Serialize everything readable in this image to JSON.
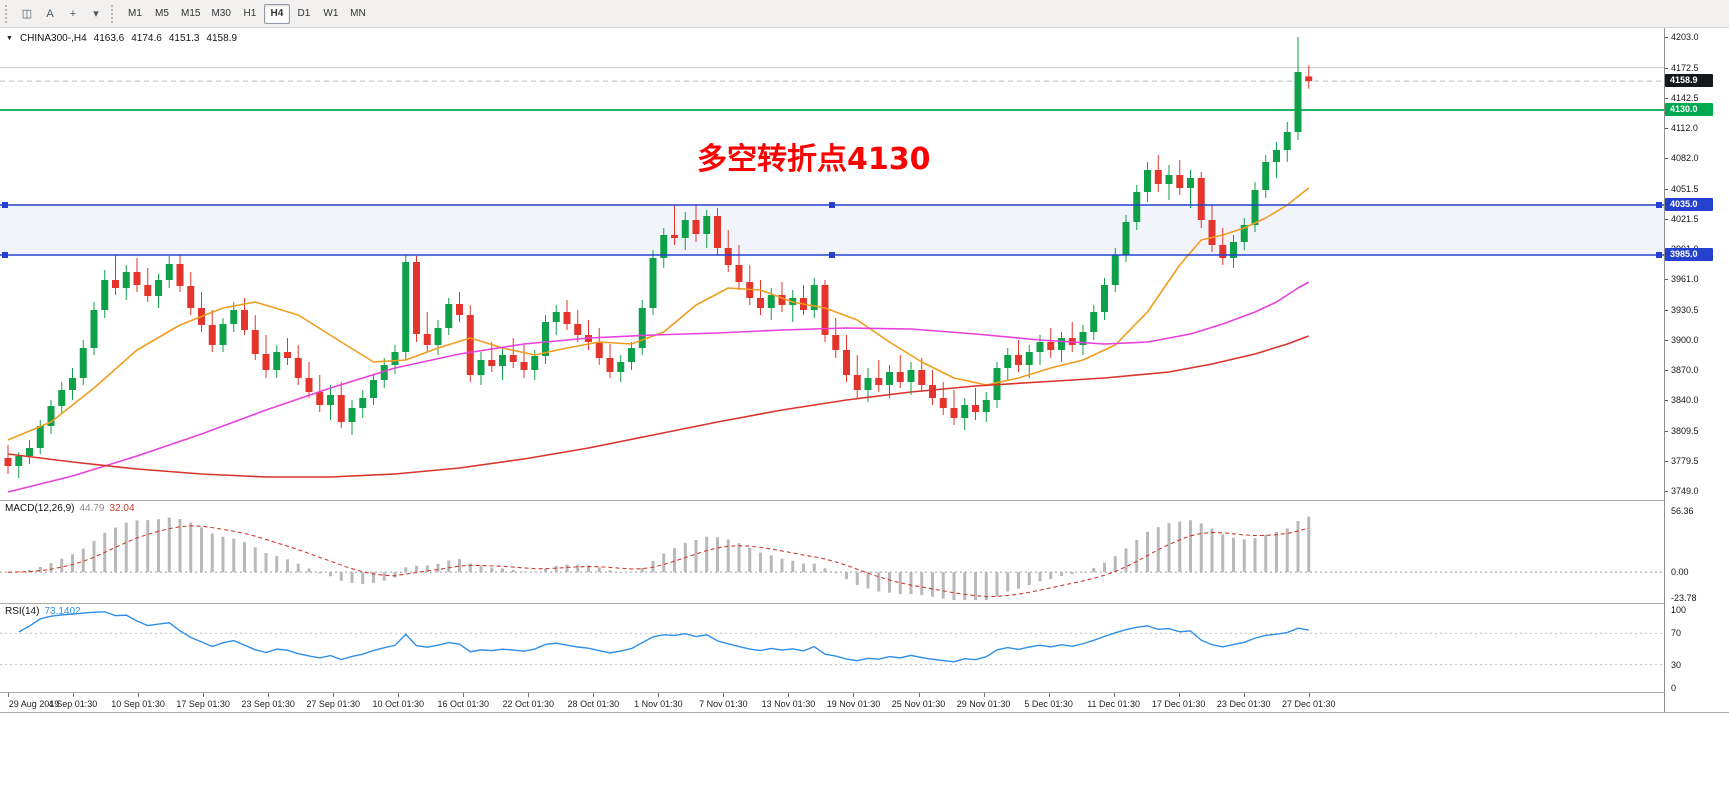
{
  "toolbar": {
    "tools": [
      {
        "id": "chart-window",
        "glyph": "◫"
      },
      {
        "id": "text-label-tool",
        "glyph": "A"
      },
      {
        "id": "crosshair-tool",
        "glyph": "+"
      },
      {
        "id": "objects-dropdown",
        "glyph": "▾"
      }
    ],
    "timeframes": [
      "M1",
      "M5",
      "M15",
      "M30",
      "H1",
      "H4",
      "D1",
      "W1",
      "MN"
    ],
    "active_timeframe": "H4"
  },
  "chart": {
    "symbol": "CHINA300-,H4",
    "open": "4163.6",
    "high": "4174.6",
    "low": "4151.3",
    "close": "4158.9",
    "annotation": {
      "text": "多空转折点4130",
      "color": "#fd0002"
    },
    "price_ticks": [
      "4203.0",
      "4172.5",
      "4142.5",
      "4112.0",
      "4082.0",
      "4051.5",
      "4021.5",
      "3991.0",
      "3961.0",
      "3930.5",
      "3900.0",
      "3870.0",
      "3840.0",
      "3809.5",
      "3779.5",
      "3749.0"
    ],
    "price_markers": [
      {
        "name": "last-price-badge",
        "label": "4158.9",
        "value": 4158.9,
        "bg": "#15191c"
      },
      {
        "name": "level-badge-4130",
        "label": "4130.0",
        "value": 4130.0,
        "bg": "#00a94f"
      },
      {
        "name": "level-badge-4035",
        "label": "4035.0",
        "value": 4035.0,
        "bg": "#2440cf"
      },
      {
        "name": "level-badge-3985",
        "label": "3985.0",
        "value": 3985.0,
        "bg": "#2440cf"
      }
    ],
    "lines": [
      {
        "name": "gray-level-line",
        "value": 4172.5,
        "color": "#cccccc",
        "width": 1,
        "style": "solid",
        "layer": "bg",
        "handles": false
      },
      {
        "name": "bid-price-line",
        "value": 4158.9,
        "color": "#bcbcbc",
        "width": 1,
        "style": "dashed",
        "layer": "bg",
        "handles": false
      },
      {
        "name": "green-hline-4130",
        "value": 4130.0,
        "color": "#00a94f",
        "width": 1.8,
        "style": "solid",
        "layer": "fg",
        "handles": false
      },
      {
        "name": "blue-hline-4035",
        "value": 4035.0,
        "color": "#2440cf",
        "width": 1.6,
        "style": "solid",
        "layer": "fg",
        "handles": true
      },
      {
        "name": "blue-hline-3985",
        "value": 3985.0,
        "color": "#2440cf",
        "width": 1.6,
        "style": "solid",
        "layer": "fg",
        "handles": true
      }
    ],
    "band": {
      "from": 4035.0,
      "to": 3985.0,
      "color": "rgba(68,100,210,0.07)"
    }
  },
  "chart_data": {
    "type": "candlestick",
    "title": "CHINA300- H4",
    "price_range": {
      "min": 3740,
      "max": 4212
    },
    "colors": {
      "up": "#0fa04a",
      "down": "#e3352b"
    },
    "x_labels": [
      "29 Aug 2019",
      "4 Sep 01:30",
      "10 Sep 01:30",
      "17 Sep 01:30",
      "23 Sep 01:30",
      "27 Sep 01:30",
      "10 Oct 01:30",
      "16 Oct 01:30",
      "22 Oct 01:30",
      "28 Oct 01:30",
      "1 Nov 01:30",
      "7 Nov 01:30",
      "13 Nov 01:30",
      "19 Nov 01:30",
      "25 Nov 01:30",
      "29 Nov 01:30",
      "5 Dec 01:30",
      "11 Dec 01:30",
      "17 Dec 01:30",
      "23 Dec 01:30",
      "27 Dec 01:30"
    ],
    "candles": [
      [
        3782,
        3795,
        3766,
        3774
      ],
      [
        3774,
        3788,
        3762,
        3784
      ],
      [
        3784,
        3800,
        3776,
        3792
      ],
      [
        3792,
        3820,
        3786,
        3814
      ],
      [
        3814,
        3840,
        3806,
        3834
      ],
      [
        3834,
        3858,
        3826,
        3850
      ],
      [
        3850,
        3872,
        3840,
        3862
      ],
      [
        3862,
        3900,
        3855,
        3892
      ],
      [
        3892,
        3938,
        3885,
        3930
      ],
      [
        3930,
        3970,
        3922,
        3960
      ],
      [
        3960,
        3985,
        3945,
        3952
      ],
      [
        3952,
        3975,
        3940,
        3968
      ],
      [
        3968,
        3982,
        3948,
        3955
      ],
      [
        3955,
        3972,
        3938,
        3944
      ],
      [
        3944,
        3966,
        3932,
        3960
      ],
      [
        3960,
        3984,
        3952,
        3976
      ],
      [
        3976,
        3985,
        3948,
        3954
      ],
      [
        3954,
        3968,
        3925,
        3932
      ],
      [
        3932,
        3948,
        3908,
        3915
      ],
      [
        3915,
        3930,
        3888,
        3895
      ],
      [
        3895,
        3922,
        3888,
        3916
      ],
      [
        3916,
        3938,
        3908,
        3930
      ],
      [
        3930,
        3942,
        3905,
        3910
      ],
      [
        3910,
        3925,
        3880,
        3886
      ],
      [
        3886,
        3905,
        3862,
        3870
      ],
      [
        3870,
        3895,
        3862,
        3888
      ],
      [
        3888,
        3902,
        3875,
        3882
      ],
      [
        3882,
        3895,
        3855,
        3862
      ],
      [
        3862,
        3878,
        3842,
        3848
      ],
      [
        3848,
        3865,
        3828,
        3835
      ],
      [
        3835,
        3855,
        3820,
        3845
      ],
      [
        3845,
        3858,
        3812,
        3818
      ],
      [
        3818,
        3840,
        3805,
        3832
      ],
      [
        3832,
        3850,
        3822,
        3842
      ],
      [
        3842,
        3866,
        3835,
        3860
      ],
      [
        3860,
        3882,
        3852,
        3875
      ],
      [
        3875,
        3895,
        3866,
        3888
      ],
      [
        3888,
        3985,
        3880,
        3978
      ],
      [
        3978,
        3984,
        3898,
        3906
      ],
      [
        3906,
        3928,
        3888,
        3895
      ],
      [
        3895,
        3920,
        3885,
        3912
      ],
      [
        3912,
        3942,
        3905,
        3936
      ],
      [
        3936,
        3948,
        3918,
        3925
      ],
      [
        3925,
        3935,
        3858,
        3865
      ],
      [
        3865,
        3888,
        3855,
        3880
      ],
      [
        3880,
        3898,
        3868,
        3874
      ],
      [
        3874,
        3892,
        3860,
        3885
      ],
      [
        3885,
        3902,
        3872,
        3878
      ],
      [
        3878,
        3895,
        3862,
        3870
      ],
      [
        3870,
        3890,
        3860,
        3884
      ],
      [
        3884,
        3925,
        3876,
        3918
      ],
      [
        3918,
        3935,
        3905,
        3928
      ],
      [
        3928,
        3940,
        3910,
        3916
      ],
      [
        3916,
        3930,
        3898,
        3905
      ],
      [
        3905,
        3920,
        3890,
        3898
      ],
      [
        3898,
        3912,
        3875,
        3882
      ],
      [
        3882,
        3896,
        3862,
        3868
      ],
      [
        3868,
        3885,
        3858,
        3878
      ],
      [
        3878,
        3898,
        3870,
        3892
      ],
      [
        3892,
        3940,
        3885,
        3932
      ],
      [
        3932,
        3990,
        3925,
        3982
      ],
      [
        3982,
        4012,
        3972,
        4005
      ],
      [
        4005,
        4035,
        3995,
        4002
      ],
      [
        4002,
        4028,
        3990,
        4020
      ],
      [
        4020,
        4036,
        3998,
        4006
      ],
      [
        4006,
        4030,
        3992,
        4024
      ],
      [
        4024,
        4032,
        3985,
        3992
      ],
      [
        3992,
        4010,
        3968,
        3975
      ],
      [
        3975,
        3995,
        3950,
        3958
      ],
      [
        3958,
        3975,
        3935,
        3942
      ],
      [
        3942,
        3960,
        3925,
        3932
      ],
      [
        3932,
        3952,
        3920,
        3945
      ],
      [
        3945,
        3958,
        3928,
        3935
      ],
      [
        3935,
        3950,
        3918,
        3942
      ],
      [
        3942,
        3955,
        3925,
        3930
      ],
      [
        3930,
        3962,
        3922,
        3955
      ],
      [
        3955,
        3960,
        3898,
        3905
      ],
      [
        3905,
        3922,
        3882,
        3890
      ],
      [
        3890,
        3905,
        3858,
        3865
      ],
      [
        3865,
        3885,
        3842,
        3850
      ],
      [
        3850,
        3872,
        3838,
        3862
      ],
      [
        3862,
        3880,
        3848,
        3855
      ],
      [
        3855,
        3875,
        3842,
        3868
      ],
      [
        3868,
        3885,
        3852,
        3858
      ],
      [
        3858,
        3878,
        3845,
        3870
      ],
      [
        3870,
        3882,
        3848,
        3855
      ],
      [
        3855,
        3870,
        3835,
        3842
      ],
      [
        3842,
        3858,
        3825,
        3832
      ],
      [
        3832,
        3850,
        3815,
        3822
      ],
      [
        3822,
        3842,
        3810,
        3835
      ],
      [
        3835,
        3852,
        3820,
        3828
      ],
      [
        3828,
        3848,
        3818,
        3840
      ],
      [
        3840,
        3878,
        3832,
        3872
      ],
      [
        3872,
        3892,
        3860,
        3885
      ],
      [
        3885,
        3900,
        3868,
        3875
      ],
      [
        3875,
        3895,
        3862,
        3888
      ],
      [
        3888,
        3905,
        3875,
        3898
      ],
      [
        3898,
        3912,
        3882,
        3890
      ],
      [
        3890,
        3908,
        3878,
        3902
      ],
      [
        3902,
        3918,
        3888,
        3895
      ],
      [
        3895,
        3915,
        3885,
        3908
      ],
      [
        3908,
        3935,
        3900,
        3928
      ],
      [
        3928,
        3962,
        3920,
        3955
      ],
      [
        3955,
        3992,
        3948,
        3985
      ],
      [
        3985,
        4025,
        3978,
        4018
      ],
      [
        4018,
        4055,
        4010,
        4048
      ],
      [
        4048,
        4078,
        4038,
        4070
      ],
      [
        4070,
        4085,
        4048,
        4056
      ],
      [
        4056,
        4075,
        4040,
        4065
      ],
      [
        4065,
        4080,
        4045,
        4052
      ],
      [
        4052,
        4070,
        4032,
        4062
      ],
      [
        4062,
        4068,
        4012,
        4020
      ],
      [
        4020,
        4035,
        3988,
        3995
      ],
      [
        3995,
        4012,
        3975,
        3982
      ],
      [
        3982,
        4005,
        3972,
        3998
      ],
      [
        3998,
        4022,
        3990,
        4015
      ],
      [
        4015,
        4058,
        4008,
        4050
      ],
      [
        4050,
        4085,
        4042,
        4078
      ],
      [
        4078,
        4098,
        4062,
        4090
      ],
      [
        4090,
        4118,
        4078,
        4108
      ],
      [
        4108,
        4203,
        4100,
        4168
      ],
      [
        4163.6,
        4174.6,
        4151.3,
        4158.9
      ]
    ],
    "moving_averages": [
      {
        "name": "ma-fast",
        "color": "#f09d1f",
        "points": [
          [
            0,
            3800
          ],
          [
            4,
            3818
          ],
          [
            8,
            3852
          ],
          [
            12,
            3890
          ],
          [
            16,
            3915
          ],
          [
            20,
            3932
          ],
          [
            23,
            3938
          ],
          [
            27,
            3925
          ],
          [
            31,
            3898
          ],
          [
            34,
            3878
          ],
          [
            37,
            3880
          ],
          [
            40,
            3892
          ],
          [
            43,
            3902
          ],
          [
            46,
            3892
          ],
          [
            49,
            3885
          ],
          [
            52,
            3892
          ],
          [
            55,
            3898
          ],
          [
            58,
            3896
          ],
          [
            61,
            3908
          ],
          [
            64,
            3935
          ],
          [
            67,
            3952
          ],
          [
            70,
            3950
          ],
          [
            73,
            3938
          ],
          [
            76,
            3932
          ],
          [
            79,
            3920
          ],
          [
            82,
            3898
          ],
          [
            85,
            3878
          ],
          [
            88,
            3862
          ],
          [
            91,
            3855
          ],
          [
            94,
            3862
          ],
          [
            97,
            3872
          ],
          [
            100,
            3880
          ],
          [
            103,
            3895
          ],
          [
            106,
            3928
          ],
          [
            109,
            3975
          ],
          [
            111,
            4000
          ],
          [
            113,
            4005
          ],
          [
            115,
            4012
          ],
          [
            117,
            4022
          ],
          [
            119,
            4035
          ],
          [
            121,
            4052
          ]
        ]
      },
      {
        "name": "ma-mid",
        "color": "#e840dd",
        "points": [
          [
            0,
            3748
          ],
          [
            6,
            3764
          ],
          [
            12,
            3784
          ],
          [
            18,
            3806
          ],
          [
            24,
            3830
          ],
          [
            30,
            3852
          ],
          [
            36,
            3872
          ],
          [
            42,
            3886
          ],
          [
            48,
            3896
          ],
          [
            54,
            3902
          ],
          [
            60,
            3905
          ],
          [
            66,
            3907
          ],
          [
            72,
            3910
          ],
          [
            78,
            3912
          ],
          [
            84,
            3911
          ],
          [
            90,
            3906
          ],
          [
            96,
            3900
          ],
          [
            102,
            3896
          ],
          [
            106,
            3898
          ],
          [
            110,
            3906
          ],
          [
            113,
            3916
          ],
          [
            116,
            3928
          ],
          [
            118,
            3938
          ],
          [
            120,
            3952
          ],
          [
            121,
            3958
          ]
        ]
      },
      {
        "name": "ma-slow",
        "color": "#d9342b",
        "points": [
          [
            0,
            3786
          ],
          [
            6,
            3778
          ],
          [
            12,
            3771
          ],
          [
            18,
            3766
          ],
          [
            24,
            3763
          ],
          [
            30,
            3763
          ],
          [
            36,
            3766
          ],
          [
            42,
            3772
          ],
          [
            48,
            3781
          ],
          [
            54,
            3792
          ],
          [
            60,
            3805
          ],
          [
            66,
            3818
          ],
          [
            72,
            3830
          ],
          [
            78,
            3840
          ],
          [
            84,
            3848
          ],
          [
            90,
            3854
          ],
          [
            96,
            3858
          ],
          [
            102,
            3862
          ],
          [
            108,
            3868
          ],
          [
            112,
            3876
          ],
          [
            116,
            3886
          ],
          [
            119,
            3896
          ],
          [
            121,
            3904
          ]
        ]
      }
    ]
  },
  "macd": {
    "label": "MACD(12,26,9)",
    "value_main": "44.79",
    "value_signal": "32.04",
    "params": {
      "fast": 12,
      "slow": 26,
      "signal": 9
    },
    "scale_labels": [
      "56.36",
      "0.00",
      "-23.78"
    ],
    "max": 56.36,
    "min": -23.78,
    "colors": {
      "histogram": "#b9b9b9",
      "signal": "#d03a2e"
    }
  },
  "rsi": {
    "label": "RSI(14)",
    "value": "73.1402",
    "period": 14,
    "scale_labels": [
      "100",
      "70",
      "30",
      "0"
    ],
    "levels": [
      70,
      30
    ],
    "color": "#2f8fe8"
  }
}
